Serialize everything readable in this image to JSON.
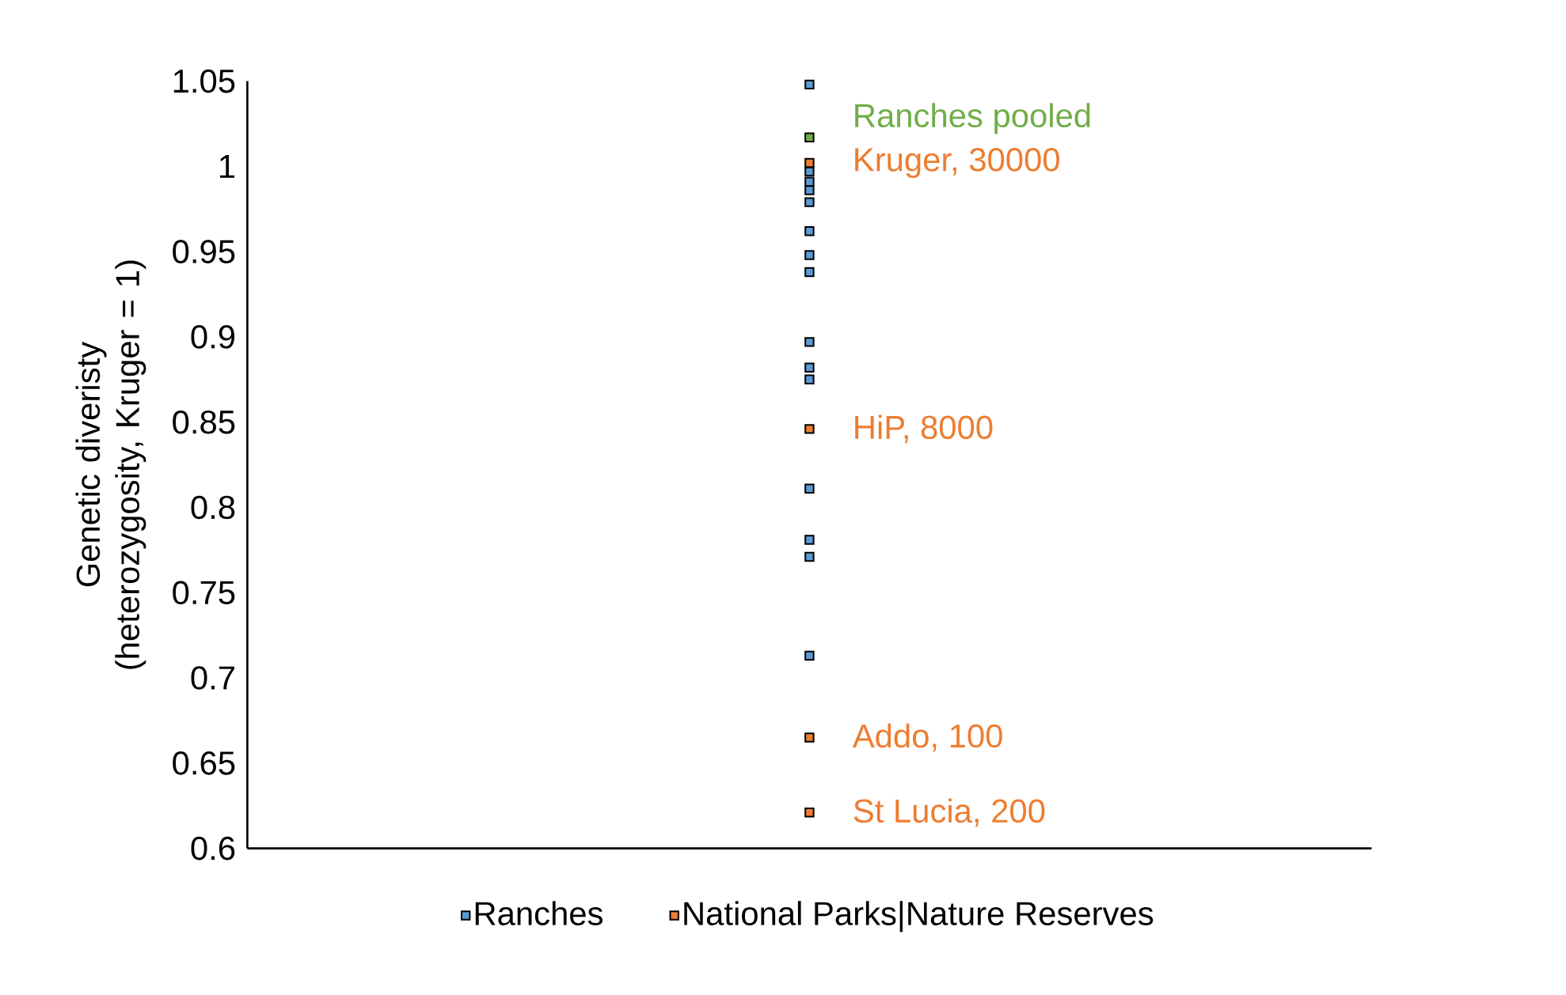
{
  "chart_data": {
    "type": "scatter",
    "ylabel": "Genetic diveristy (heterozygosity, Kruger = 1)",
    "categories": [
      null
    ],
    "ylim": [
      0.6,
      1.05
    ],
    "yticks": [
      {
        "value": 0.6,
        "label": "0.6"
      },
      0.65,
      0.7,
      0.75,
      0.8,
      0.85,
      0.9,
      0.95,
      {
        "value": 1.0,
        "label": "1"
      },
      1.05
    ],
    "grid": false,
    "legend": "bottom",
    "marker": "square",
    "series": [
      {
        "name": "Ranches",
        "color": "#5b9bd5",
        "x": [
          null,
          null,
          null,
          null,
          null,
          null,
          null,
          null,
          null,
          null,
          null,
          null,
          null,
          null,
          null
        ],
        "values": [
          1.048,
          0.997,
          0.991,
          0.986,
          0.979,
          0.962,
          0.948,
          0.938,
          0.897,
          0.882,
          0.875,
          0.811,
          0.781,
          0.771,
          0.713
        ]
      },
      {
        "name": "National Parks|Nature Reserves",
        "color": "#ed7d31",
        "x": [
          null,
          null,
          null,
          null
        ],
        "values": [
          1.002,
          0.846,
          0.665,
          0.621
        ]
      },
      {
        "color": "#70ad47",
        "x": [
          null
        ],
        "values": [
          1.017
        ]
      }
    ],
    "annotations": [
      "Ranches pooled",
      "Kruger, 30000",
      "HiP, 8000",
      "Addo, 100",
      "St Lucia, 200"
    ]
  }
}
